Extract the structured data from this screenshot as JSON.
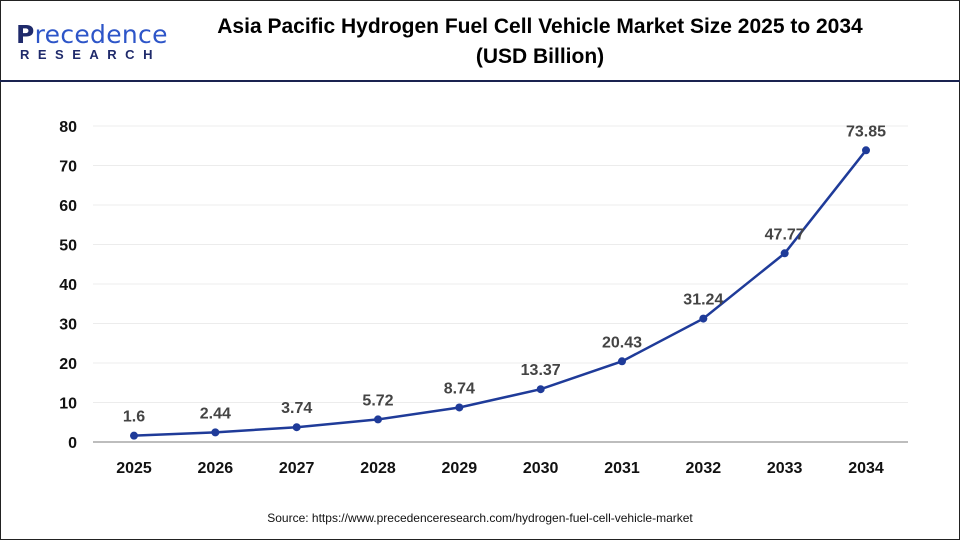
{
  "brand": {
    "logo_text_top": "Precedence",
    "logo_text_bottom": "RESEARCH"
  },
  "header": {
    "title_line1": "Asia Pacific Hydrogen Fuel Cell Vehicle Market Size 2025 to 2034",
    "title_line2": "(USD Billion)"
  },
  "source": "Source: https://www.precedenceresearch.com/hydrogen-fuel-cell-vehicle-market",
  "chart_data": {
    "type": "line",
    "title": "Asia Pacific Hydrogen Fuel Cell Vehicle Market Size 2025 to 2034 (USD Billion)",
    "categories": [
      "2025",
      "2026",
      "2027",
      "2028",
      "2029",
      "2030",
      "2031",
      "2032",
      "2033",
      "2034"
    ],
    "values": [
      1.6,
      2.44,
      3.74,
      5.72,
      8.74,
      13.37,
      20.43,
      31.24,
      47.77,
      73.85
    ],
    "data_labels": [
      "1.6",
      "2.44",
      "3.74",
      "5.72",
      "8.74",
      "13.37",
      "20.43",
      "31.24",
      "47.77",
      "73.85"
    ],
    "yticks": [
      0,
      10,
      20,
      30,
      40,
      50,
      60,
      70,
      80
    ],
    "ylim": [
      0,
      80
    ],
    "grid": true,
    "line_color": "#1f3b99",
    "xlabel": "",
    "ylabel": ""
  }
}
